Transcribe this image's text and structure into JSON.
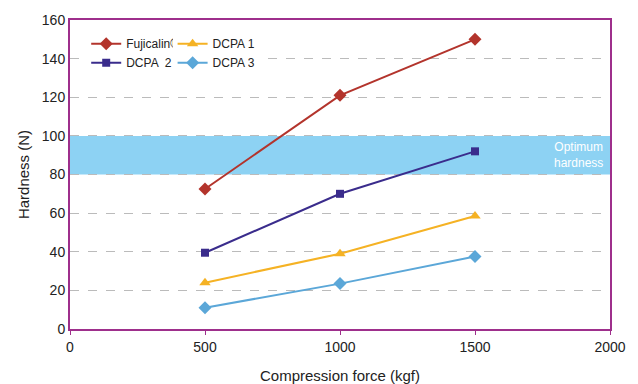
{
  "chart_data": {
    "type": "line",
    "x_label": "Compression force (kgf)",
    "y_label": "Hardness (N)",
    "xlim": [
      0,
      2000
    ],
    "xticks": [
      0,
      500,
      1000,
      1500,
      2000
    ],
    "ylim": [
      0,
      160
    ],
    "yticks": [
      0,
      20,
      40,
      60,
      80,
      100,
      120,
      140,
      160
    ],
    "grid": true,
    "legend": "upper left",
    "x": [
      500,
      1000,
      1500
    ],
    "series": [
      {
        "name": "Fujicalin®",
        "color": "#b3342c",
        "marker": "diamond",
        "values": [
          72.5,
          121,
          150
        ]
      },
      {
        "name": "DCPA  2",
        "color": "#3a2c8c",
        "marker": "square",
        "values": [
          39.5,
          70,
          92
        ]
      },
      {
        "name": "DCPA 1",
        "color": "#f5b224",
        "marker": "triangle-up",
        "values": [
          24,
          39,
          58.5
        ]
      },
      {
        "name": "DCPA 3",
        "color": "#5ba7d8",
        "marker": "diamond",
        "values": [
          11,
          23.5,
          37.5
        ]
      }
    ],
    "bands": [
      {
        "text": [
          "Optimum",
          "hardness"
        ],
        "y0": 80,
        "y1": 100,
        "color": "#8dd2f3"
      }
    ]
  }
}
